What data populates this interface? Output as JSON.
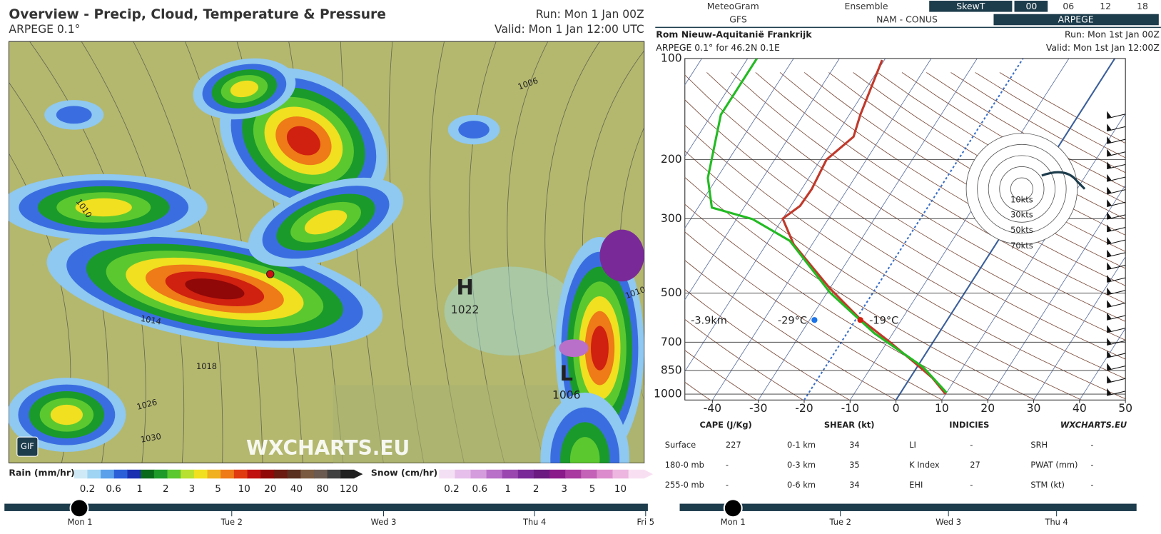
{
  "map": {
    "title": "Overview - Precip, Cloud, Temperature & Pressure",
    "subtitle": "ARPEGE 0.1°",
    "run": "Run: Mon 1 Jan 00Z",
    "valid": "Valid: Mon 1 Jan 12:00 UTC",
    "high": "H",
    "high_pressure": "1022",
    "low": "L",
    "low_pressure": "1006",
    "isobar_labels": [
      "1006",
      "1010",
      "1014",
      "1018",
      "1026",
      "1030",
      "1010"
    ],
    "watermark": "WXCHARTS.EU",
    "gif": "GIF"
  },
  "rain_legend": {
    "title": "Rain (mm/hr)",
    "ticks": [
      0.2,
      0.6,
      1,
      2,
      3,
      5,
      10,
      20,
      40,
      80,
      120
    ],
    "colors": [
      "#cfeaf6",
      "#9fd4f2",
      "#5aa0ea",
      "#2a5fd8",
      "#1a30b0",
      "#0a6a1c",
      "#1e9a2a",
      "#5cc830",
      "#b8e030",
      "#f0e020",
      "#f0b020",
      "#ee7a18",
      "#e03a10",
      "#c01010",
      "#900808",
      "#6a1a10",
      "#5a3020",
      "#7a5a40",
      "#6a5a50",
      "#404040",
      "#202020"
    ]
  },
  "snow_legend": {
    "title": "Snow (cm/hr)",
    "ticks": [
      0.2,
      0.6,
      1,
      2,
      3,
      5,
      10
    ],
    "colors": [
      "#f4e0f4",
      "#e6c0ea",
      "#d49cdc",
      "#b870c8",
      "#9a48b0",
      "#7a2a98",
      "#6a1a80",
      "#8a1a8a",
      "#a83aa0",
      "#c462b8",
      "#dc8ccc",
      "#ecb6e0",
      "#f8e0f2"
    ]
  },
  "map_timeline": [
    "Mon 1",
    "Tue 2",
    "Wed 3",
    "Thu 4",
    "Fri 5"
  ],
  "tabs": {
    "row1": [
      "MeteoGram",
      "Ensemble",
      "SkewT",
      "00",
      "06",
      "12",
      "18"
    ],
    "row2": [
      "GFS",
      "NAM - CONUS",
      "ARPEGE"
    ]
  },
  "sounding": {
    "location": "Rom Nieuw-Aquitanië Frankrijk",
    "run": "Run: Mon 1st Jan 00Z",
    "model": "ARPEGE 0.1° for 46.2N 0.1E",
    "valid": "Valid: Mon 1st Jan 12:00Z",
    "chart_data": {
      "type": "skew-t",
      "log_y": true,
      "ylim": [
        1041,
        100
      ],
      "yticks": [
        100,
        200,
        300,
        500,
        700,
        850,
        1000
      ],
      "xlim": [
        -46,
        50
      ],
      "xticks": [
        -40,
        -30,
        -20,
        -10,
        0,
        10,
        20,
        30,
        40,
        50
      ],
      "series": [
        {
          "color": "#c0392b",
          "pressure": [
            1000,
            894,
            808,
            700,
            596,
            486,
            358,
            300,
            275,
            245,
            200,
            171,
            147,
            101
          ],
          "temperature": [
            10,
            4.8,
            -1,
            -9.4,
            -19.2,
            -29.8,
            -44,
            -50,
            -48,
            -47.8,
            -48.7,
            -46,
            -47.6,
            -50.5
          ]
        },
        {
          "color": "#22bb22",
          "pressure": [
            990,
            829,
            659,
            499,
            349,
            301,
            278,
            227,
            147,
            100
          ],
          "temperature": [
            10,
            1.2,
            -14,
            -29.3,
            -45.4,
            -56.5,
            -67,
            -72,
            -78,
            -78
          ]
        }
      ],
      "annotations": [
        "-3.9km",
        "-29°C",
        "-19°C"
      ],
      "hodograph_labels": [
        "10kts",
        "30kts",
        "50kts",
        "70kts"
      ]
    },
    "table": {
      "headers": [
        "CAPE (J/Kg)",
        "SHEAR (kt)",
        "INDICIES",
        "WXCHARTS.EU"
      ],
      "rows": [
        [
          "Surface",
          "227",
          "0-1 km",
          "34",
          "LI",
          "-",
          "SRH",
          "-"
        ],
        [
          "180-0 mb",
          "-",
          "0-3 km",
          "35",
          "K Index",
          "27",
          "PWAT (mm)",
          "-"
        ],
        [
          "255-0 mb",
          "-",
          "0-6 km",
          "34",
          "EHI",
          "-",
          "STM (kt)",
          "-"
        ]
      ]
    },
    "timeline": [
      "Mon 1",
      "Tue 2",
      "Wed 3",
      "Thu 4"
    ]
  }
}
